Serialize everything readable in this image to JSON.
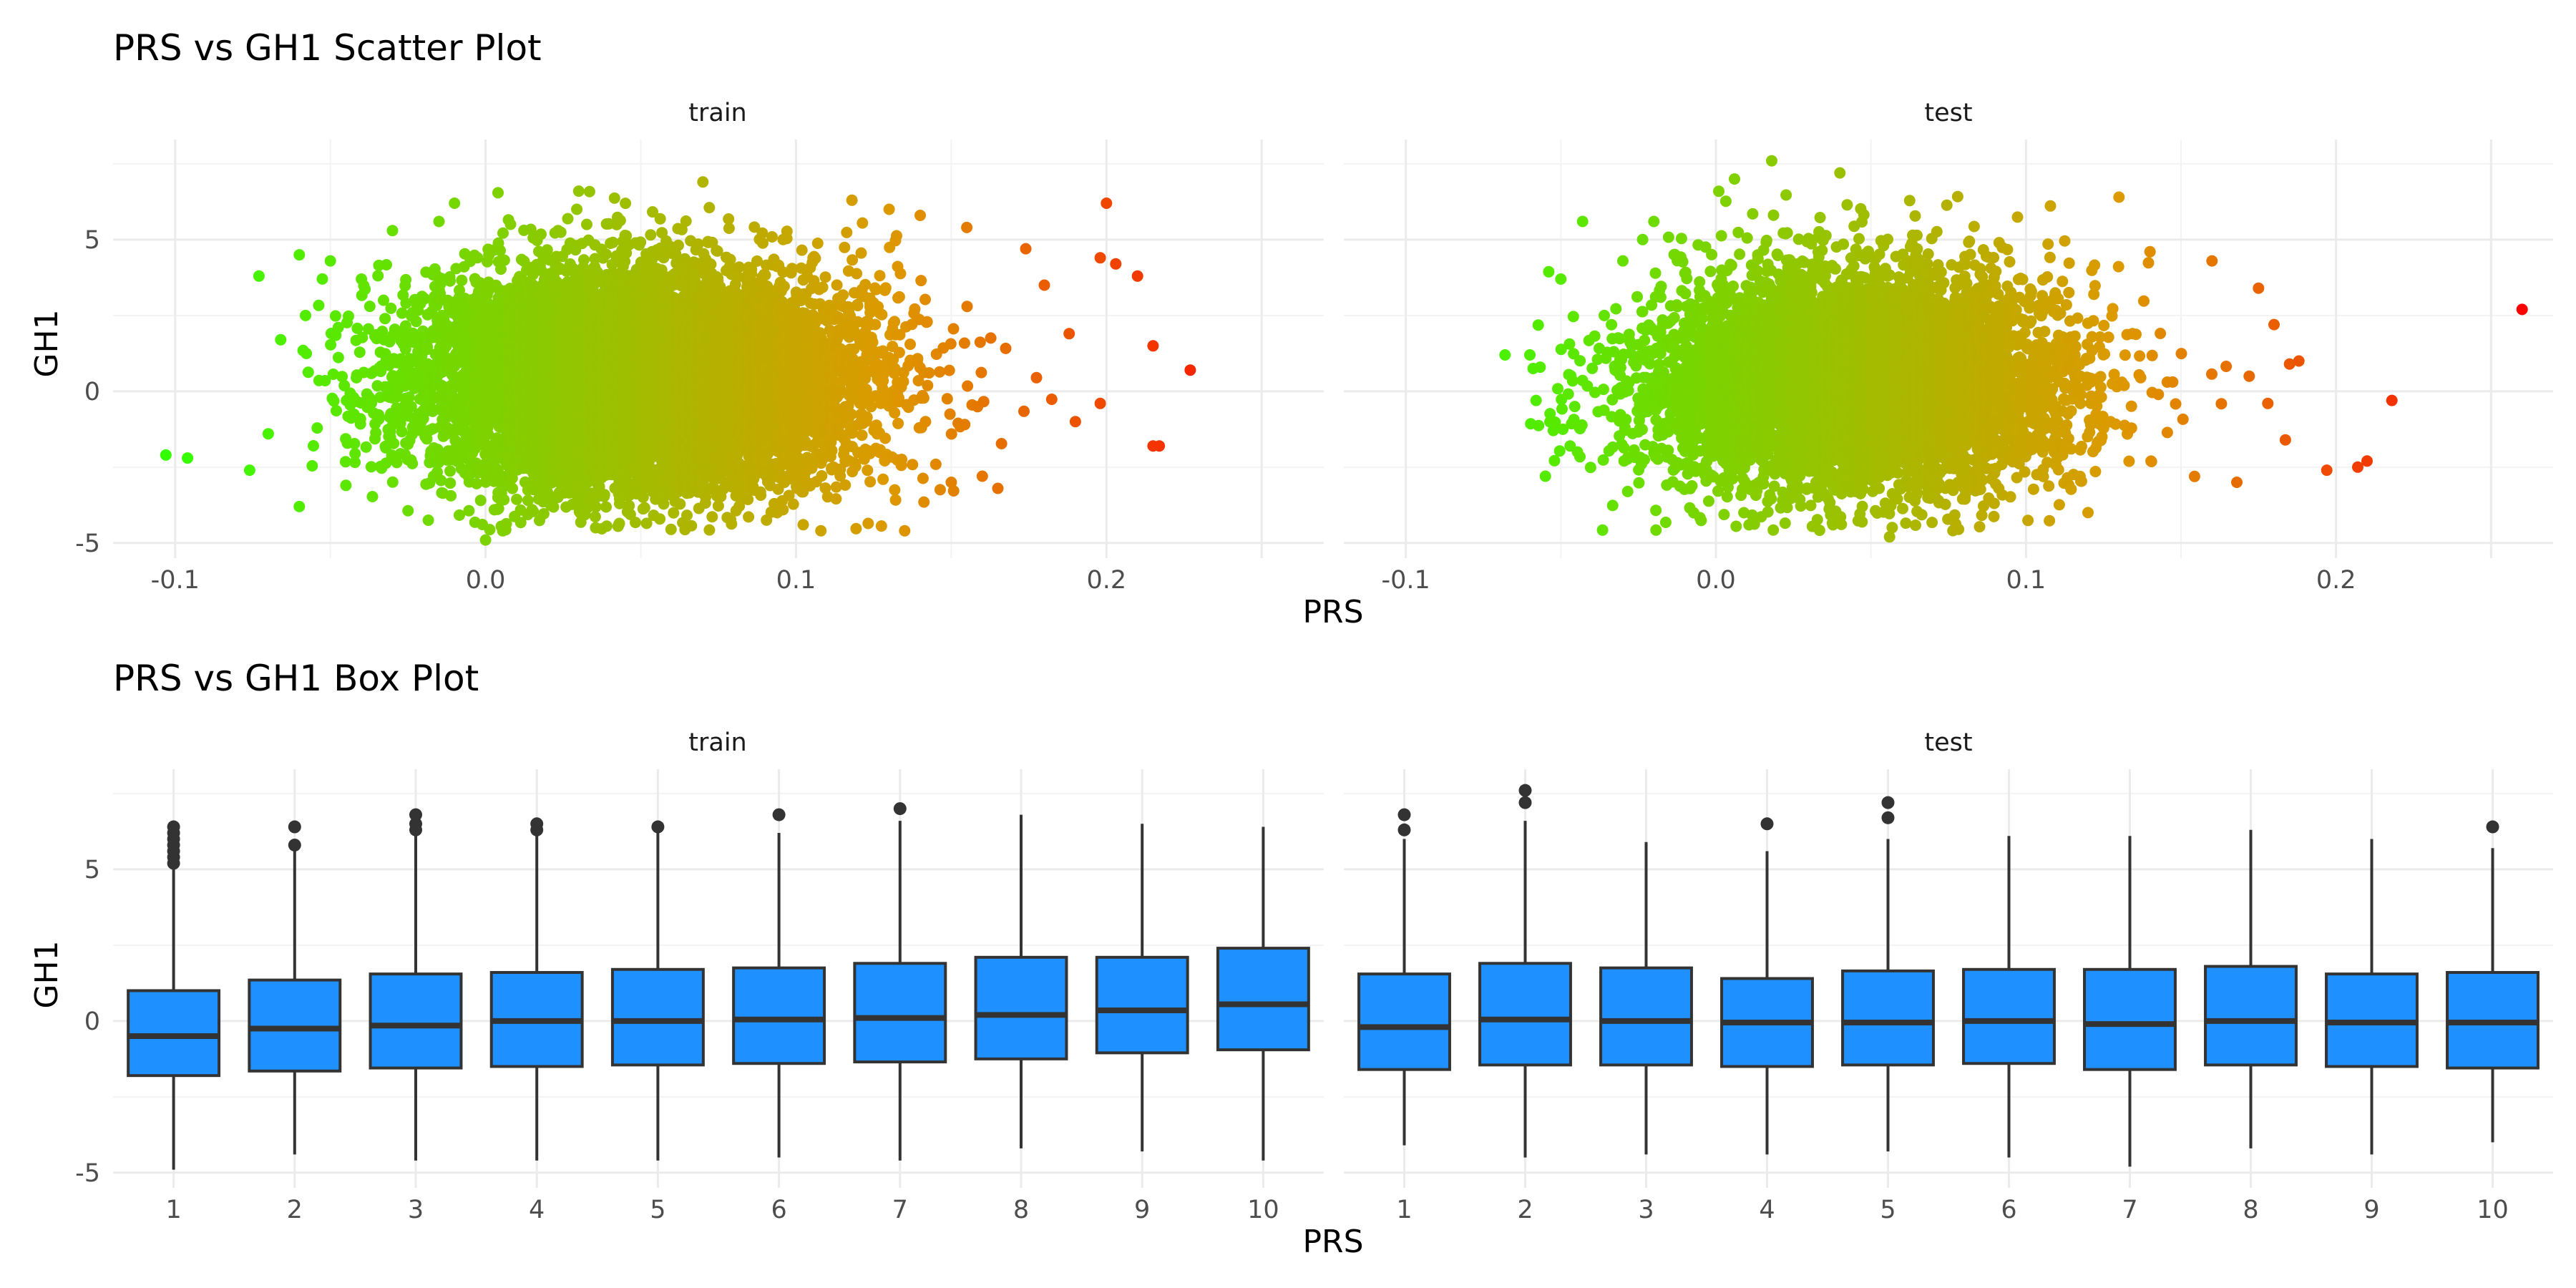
{
  "chart_data": [
    {
      "type": "scatter",
      "title": "PRS vs GH1 Scatter Plot",
      "xlabel": "PRS",
      "ylabel": "GH1",
      "facets": [
        "train",
        "test"
      ],
      "xlim": [
        -0.12,
        0.27
      ],
      "ylim": [
        -5.5,
        8.3
      ],
      "x_ticks": [
        -0.1,
        0.0,
        0.1,
        0.2
      ],
      "x_tick_labels": [
        "-0.1",
        "0.0",
        "0.1",
        "0.2"
      ],
      "y_ticks": [
        -5,
        0,
        5
      ],
      "y_tick_labels": [
        "-5",
        "0",
        "5"
      ],
      "color_scale": {
        "low": "#33ff00",
        "mid": "#dd9900",
        "high": "#ff0000",
        "low_value": -0.1,
        "mid_value": 0.13,
        "high_value": 0.26
      },
      "grid": true,
      "legend": "none",
      "series": [
        {
          "panel": "train",
          "bulk": {
            "x_mean": 0.05,
            "x_sd": 0.035,
            "y_mean": 0.4,
            "y_sd": 1.75,
            "n": 9000
          },
          "points": [
            {
              "x": -0.103,
              "y": -2.1
            },
            {
              "x": -0.096,
              "y": -2.2
            },
            {
              "x": -0.073,
              "y": 3.8
            },
            {
              "x": -0.076,
              "y": -2.6
            },
            {
              "x": -0.06,
              "y": 4.5
            },
            {
              "x": -0.06,
              "y": -3.8
            },
            {
              "x": -0.058,
              "y": 2.5
            },
            {
              "x": -0.066,
              "y": 1.7
            },
            {
              "x": -0.07,
              "y": -1.4
            },
            {
              "x": -0.05,
              "y": 4.3
            },
            {
              "x": -0.045,
              "y": -3.1
            },
            {
              "x": -0.04,
              "y": 3.7
            },
            {
              "x": -0.03,
              "y": 5.3
            },
            {
              "x": -0.015,
              "y": 5.6
            },
            {
              "x": -0.01,
              "y": 6.2
            },
            {
              "x": 0.03,
              "y": 6.6
            },
            {
              "x": 0.0,
              "y": -4.9
            },
            {
              "x": 0.07,
              "y": 6.9
            },
            {
              "x": 0.135,
              "y": -4.6
            },
            {
              "x": 0.2,
              "y": 6.2
            },
            {
              "x": 0.198,
              "y": 4.4
            },
            {
              "x": 0.21,
              "y": 3.8
            },
            {
              "x": 0.203,
              "y": 4.2
            },
            {
              "x": 0.215,
              "y": 1.5
            },
            {
              "x": 0.227,
              "y": 0.7
            },
            {
              "x": 0.217,
              "y": -1.8
            },
            {
              "x": 0.215,
              "y": -1.8
            },
            {
              "x": 0.198,
              "y": -0.4
            },
            {
              "x": 0.188,
              "y": 1.9
            },
            {
              "x": 0.19,
              "y": -1.0
            },
            {
              "x": 0.174,
              "y": 4.7
            },
            {
              "x": 0.18,
              "y": 3.5
            },
            {
              "x": 0.16,
              "y": -2.8
            },
            {
              "x": 0.165,
              "y": -3.2
            },
            {
              "x": 0.15,
              "y": -3.0
            },
            {
              "x": 0.155,
              "y": 5.4
            },
            {
              "x": 0.14,
              "y": 5.8
            },
            {
              "x": 0.13,
              "y": 6.0
            },
            {
              "x": 0.108,
              "y": -4.6
            },
            {
              "x": 0.118,
              "y": 6.3
            }
          ]
        },
        {
          "panel": "test",
          "bulk": {
            "x_mean": 0.045,
            "x_sd": 0.033,
            "y_mean": 0.3,
            "y_sd": 1.75,
            "n": 6500
          },
          "points": [
            {
              "x": 0.26,
              "y": 2.7
            },
            {
              "x": 0.218,
              "y": -0.3
            },
            {
              "x": 0.21,
              "y": -2.3
            },
            {
              "x": 0.207,
              "y": -2.5
            },
            {
              "x": 0.197,
              "y": -2.6
            },
            {
              "x": 0.188,
              "y": 1.0
            },
            {
              "x": 0.185,
              "y": 0.9
            },
            {
              "x": 0.18,
              "y": 2.2
            },
            {
              "x": 0.175,
              "y": 3.4
            },
            {
              "x": 0.172,
              "y": 0.5
            },
            {
              "x": 0.168,
              "y": -3.0
            },
            {
              "x": 0.178,
              "y": -0.4
            },
            {
              "x": 0.13,
              "y": 6.4
            },
            {
              "x": 0.14,
              "y": 4.6
            },
            {
              "x": 0.16,
              "y": 4.3
            },
            {
              "x": 0.018,
              "y": 7.6
            },
            {
              "x": 0.04,
              "y": 7.2
            },
            {
              "x": 0.006,
              "y": 7.0
            },
            {
              "x": -0.068,
              "y": 1.2
            },
            {
              "x": -0.06,
              "y": 1.2
            },
            {
              "x": -0.058,
              "y": -0.3
            },
            {
              "x": -0.055,
              "y": -2.8
            },
            {
              "x": -0.043,
              "y": 5.6
            },
            {
              "x": -0.05,
              "y": 3.7
            },
            {
              "x": -0.047,
              "y": -1.8
            },
            {
              "x": -0.036,
              "y": 2.5
            },
            {
              "x": -0.03,
              "y": 4.3
            },
            {
              "x": -0.02,
              "y": 5.6
            },
            {
              "x": 0.056,
              "y": -4.8
            },
            {
              "x": 0.12,
              "y": -4.0
            }
          ]
        }
      ]
    },
    {
      "type": "box",
      "title": "PRS vs GH1 Box Plot",
      "xlabel": "PRS",
      "ylabel": "GH1",
      "facets": [
        "train",
        "test"
      ],
      "categories": [
        "1",
        "2",
        "3",
        "4",
        "5",
        "6",
        "7",
        "8",
        "9",
        "10"
      ],
      "ylim": [
        -5.5,
        8.3
      ],
      "y_ticks": [
        -5,
        0,
        5
      ],
      "y_tick_labels": [
        "-5",
        "0",
        "5"
      ],
      "box_color": "#1e90ff",
      "outline_color": "#333333",
      "grid": true,
      "series": [
        {
          "panel": "train",
          "boxes": [
            {
              "category": "1",
              "q1": -1.8,
              "median": -0.5,
              "q3": 1.0,
              "whisker_low": -4.9,
              "whisker_high": 5.1,
              "outliers": [
                5.2,
                5.4,
                5.6,
                5.8,
                6.0,
                6.2,
                6.4
              ]
            },
            {
              "category": "2",
              "q1": -1.65,
              "median": -0.25,
              "q3": 1.35,
              "whisker_low": -4.4,
              "whisker_high": 5.6,
              "outliers": [
                5.8,
                6.4
              ]
            },
            {
              "category": "3",
              "q1": -1.55,
              "median": -0.15,
              "q3": 1.55,
              "whisker_low": -4.6,
              "whisker_high": 6.1,
              "outliers": [
                6.3,
                6.5,
                6.8
              ]
            },
            {
              "category": "4",
              "q1": -1.5,
              "median": 0.0,
              "q3": 1.6,
              "whisker_low": -4.6,
              "whisker_high": 6.1,
              "outliers": [
                6.3,
                6.5
              ]
            },
            {
              "category": "5",
              "q1": -1.45,
              "median": 0.0,
              "q3": 1.7,
              "whisker_low": -4.6,
              "whisker_high": 6.3,
              "outliers": [
                6.4
              ]
            },
            {
              "category": "6",
              "q1": -1.4,
              "median": 0.05,
              "q3": 1.75,
              "whisker_low": -4.5,
              "whisker_high": 6.2,
              "outliers": [
                6.8
              ]
            },
            {
              "category": "7",
              "q1": -1.35,
              "median": 0.1,
              "q3": 1.9,
              "whisker_low": -4.6,
              "whisker_high": 6.6,
              "outliers": [
                7.0
              ]
            },
            {
              "category": "8",
              "q1": -1.25,
              "median": 0.2,
              "q3": 2.1,
              "whisker_low": -4.2,
              "whisker_high": 6.8,
              "outliers": []
            },
            {
              "category": "9",
              "q1": -1.05,
              "median": 0.35,
              "q3": 2.1,
              "whisker_low": -4.3,
              "whisker_high": 6.5,
              "outliers": []
            },
            {
              "category": "10",
              "q1": -0.95,
              "median": 0.55,
              "q3": 2.4,
              "whisker_low": -4.6,
              "whisker_high": 6.4,
              "outliers": []
            }
          ]
        },
        {
          "panel": "test",
          "boxes": [
            {
              "category": "1",
              "q1": -1.6,
              "median": -0.2,
              "q3": 1.55,
              "whisker_low": -4.1,
              "whisker_high": 6.0,
              "outliers": [
                6.3,
                6.8
              ]
            },
            {
              "category": "2",
              "q1": -1.45,
              "median": 0.05,
              "q3": 1.9,
              "whisker_low": -4.5,
              "whisker_high": 6.6,
              "outliers": [
                7.2,
                7.6
              ]
            },
            {
              "category": "3",
              "q1": -1.45,
              "median": 0.0,
              "q3": 1.75,
              "whisker_low": -4.4,
              "whisker_high": 5.9,
              "outliers": []
            },
            {
              "category": "4",
              "q1": -1.5,
              "median": -0.05,
              "q3": 1.4,
              "whisker_low": -4.4,
              "whisker_high": 5.6,
              "outliers": [
                6.5
              ]
            },
            {
              "category": "5",
              "q1": -1.45,
              "median": -0.05,
              "q3": 1.65,
              "whisker_low": -4.3,
              "whisker_high": 6.0,
              "outliers": [
                6.7,
                7.2
              ]
            },
            {
              "category": "6",
              "q1": -1.4,
              "median": 0.0,
              "q3": 1.7,
              "whisker_low": -4.5,
              "whisker_high": 6.1,
              "outliers": []
            },
            {
              "category": "7",
              "q1": -1.6,
              "median": -0.1,
              "q3": 1.7,
              "whisker_low": -4.8,
              "whisker_high": 6.1,
              "outliers": []
            },
            {
              "category": "8",
              "q1": -1.45,
              "median": 0.0,
              "q3": 1.8,
              "whisker_low": -4.2,
              "whisker_high": 6.3,
              "outliers": []
            },
            {
              "category": "9",
              "q1": -1.5,
              "median": -0.05,
              "q3": 1.55,
              "whisker_low": -4.4,
              "whisker_high": 6.0,
              "outliers": []
            },
            {
              "category": "10",
              "q1": -1.55,
              "median": -0.05,
              "q3": 1.6,
              "whisker_low": -4.0,
              "whisker_high": 5.7,
              "outliers": [
                6.4
              ]
            }
          ]
        }
      ]
    }
  ]
}
